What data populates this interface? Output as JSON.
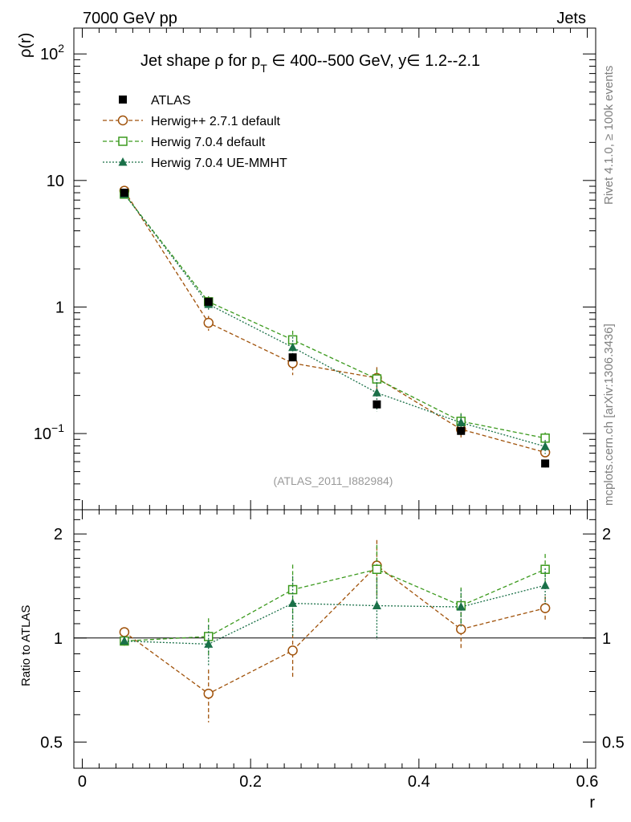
{
  "header": {
    "left": "7000 GeV pp",
    "right": "Jets"
  },
  "side_labels": {
    "rivet": "Rivet 4.1.0, ≥ 100k events",
    "mcplots": "mcplots.cern.ch [arXiv:1306.3436]"
  },
  "watermark": "(ATLAS_2011_I882984)",
  "title": {
    "main": "Jet shape ρ for p",
    "sub": "T",
    "rest": " ∈ 400--500 GeV, y∈ 1.2--2.1"
  },
  "colors": {
    "atlas": "#000000",
    "herwigpp": "#a0520a",
    "herwig704": "#3c9a1e",
    "ue_mmht": "#1a7048"
  },
  "chart_data": [
    {
      "type": "scatter",
      "ylabel": "ρ(r)",
      "xlabel": "r",
      "yscale": "log",
      "ylim": [
        0.025,
        160
      ],
      "xlim": [
        -0.01,
        0.61
      ],
      "x": [
        0.05,
        0.15,
        0.25,
        0.35,
        0.45,
        0.55
      ],
      "yticks": [
        {
          "v": 100,
          "base": "10",
          "exp": "2"
        },
        {
          "v": 10,
          "base": "10",
          "exp": ""
        },
        {
          "v": 1,
          "base": "1",
          "exp": ""
        },
        {
          "v": 0.1,
          "base": "10",
          "exp": "−1"
        }
      ],
      "series": [
        {
          "key": "atlas",
          "name": "ATLAS",
          "marker": "filled-square",
          "line": "none",
          "values": [
            8.0,
            1.1,
            0.4,
            0.17,
            0.105,
            0.058
          ],
          "errors": [
            0.2,
            0.05,
            0.02,
            0.01,
            0.008,
            0.004
          ]
        },
        {
          "key": "herwigpp",
          "name": "Herwig++ 2.7.1 default",
          "marker": "open-circle",
          "line": "dashed",
          "values": [
            8.3,
            0.75,
            0.36,
            0.275,
            0.108,
            0.071
          ],
          "errors": [
            0.25,
            0.1,
            0.07,
            0.06,
            0.015,
            0.006
          ]
        },
        {
          "key": "herwig704",
          "name": "Herwig 7.0.4 default",
          "marker": "open-square",
          "line": "dashed",
          "values": [
            7.8,
            1.1,
            0.55,
            0.27,
            0.125,
            0.092
          ],
          "errors": [
            0.25,
            0.12,
            0.1,
            0.05,
            0.02,
            0.01
          ]
        },
        {
          "key": "ue_mmht",
          "name": "Herwig 7.0.4 UE-MMHT",
          "marker": "filled-triangle",
          "line": "dotted",
          "values": [
            7.8,
            1.05,
            0.48,
            0.21,
            0.122,
            0.079
          ],
          "errors": [
            0.25,
            0.12,
            0.1,
            0.06,
            0.02,
            0.01
          ]
        }
      ]
    },
    {
      "type": "scatter",
      "ylabel": "Ratio to ATLAS",
      "xlabel": "r",
      "yscale": "log",
      "ylim": [
        0.42,
        2.35
      ],
      "xlim": [
        -0.01,
        0.61
      ],
      "x": [
        0.05,
        0.15,
        0.25,
        0.35,
        0.45,
        0.55
      ],
      "xticks": [
        "0",
        "0.2",
        "0.4",
        "0.6"
      ],
      "yticks": [
        "0.5",
        "1",
        "2"
      ],
      "series": [
        {
          "key": "herwigpp",
          "name": "Herwig++ 2.7.1 default",
          "values": [
            1.04,
            0.69,
            0.92,
            1.62,
            1.06,
            1.22
          ],
          "errors": [
            0.03,
            0.12,
            0.15,
            0.3,
            0.13,
            0.1
          ]
        },
        {
          "key": "herwig704",
          "name": "Herwig 7.0.4 default",
          "values": [
            0.98,
            1.01,
            1.38,
            1.58,
            1.24,
            1.58
          ],
          "errors": [
            0.03,
            0.13,
            0.25,
            0.28,
            0.16,
            0.17
          ]
        },
        {
          "key": "ue_mmht",
          "name": "Herwig 7.0.4 UE-MMHT",
          "values": [
            0.98,
            0.96,
            1.26,
            1.24,
            1.23,
            1.42
          ],
          "errors": [
            0.03,
            0.13,
            0.25,
            0.25,
            0.15,
            0.17
          ]
        }
      ]
    }
  ]
}
